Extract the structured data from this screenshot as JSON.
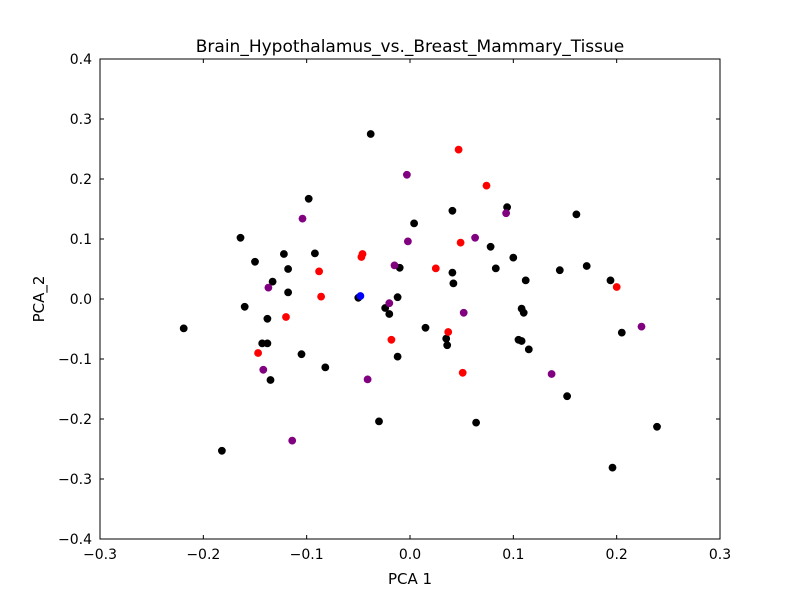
{
  "chart_data": {
    "type": "scatter",
    "title": "Brain_Hypothalamus_vs._Breast_Mammary_Tissue",
    "xlabel": "PCA 1",
    "ylabel": "PCA_2",
    "xlim": [
      -0.3,
      0.3
    ],
    "ylim": [
      -0.4,
      0.4
    ],
    "xticks": [
      -0.3,
      -0.2,
      -0.1,
      0.0,
      0.1,
      0.2,
      0.3
    ],
    "yticks": [
      -0.4,
      -0.3,
      -0.2,
      -0.1,
      0.0,
      0.1,
      0.2,
      0.3,
      0.4
    ],
    "xtick_labels": [
      "−0.3",
      "−0.2",
      "−0.1",
      "0.0",
      "0.1",
      "0.2",
      "0.3"
    ],
    "ytick_labels": [
      "−0.4",
      "−0.3",
      "−0.2",
      "−0.1",
      "0.0",
      "0.1",
      "0.2",
      "0.3",
      "0.4"
    ],
    "grid": false,
    "legend": "none",
    "series": [
      {
        "color": "#000000",
        "points": [
          [
            -0.038,
            0.275
          ],
          [
            -0.098,
            0.167
          ],
          [
            -0.164,
            0.102
          ],
          [
            -0.15,
            0.062
          ],
          [
            -0.122,
            0.075
          ],
          [
            -0.092,
            0.076
          ],
          [
            -0.118,
            0.05
          ],
          [
            -0.133,
            0.029
          ],
          [
            -0.118,
            0.011
          ],
          [
            -0.16,
            -0.013
          ],
          [
            -0.138,
            -0.033
          ],
          [
            -0.143,
            -0.074
          ],
          [
            -0.138,
            -0.074
          ],
          [
            -0.135,
            -0.135
          ],
          [
            -0.105,
            -0.092
          ],
          [
            -0.082,
            -0.114
          ],
          [
            -0.219,
            -0.049
          ],
          [
            -0.182,
            -0.253
          ],
          [
            -0.05,
            0.002
          ],
          [
            -0.024,
            -0.015
          ],
          [
            -0.02,
            -0.025
          ],
          [
            -0.012,
            0.003
          ],
          [
            -0.01,
            0.052
          ],
          [
            -0.012,
            -0.096
          ],
          [
            -0.03,
            -0.204
          ],
          [
            0.004,
            0.126
          ],
          [
            0.041,
            0.147
          ],
          [
            0.041,
            0.044
          ],
          [
            0.042,
            0.026
          ],
          [
            0.015,
            -0.048
          ],
          [
            0.035,
            -0.066
          ],
          [
            0.036,
            -0.077
          ],
          [
            0.064,
            -0.206
          ],
          [
            0.094,
            0.153
          ],
          [
            0.078,
            0.087
          ],
          [
            0.083,
            0.051
          ],
          [
            0.1,
            0.069
          ],
          [
            0.112,
            0.031
          ],
          [
            0.108,
            -0.016
          ],
          [
            0.11,
            -0.023
          ],
          [
            0.105,
            -0.068
          ],
          [
            0.108,
            -0.07
          ],
          [
            0.115,
            -0.084
          ],
          [
            0.145,
            0.048
          ],
          [
            0.161,
            0.141
          ],
          [
            0.171,
            0.055
          ],
          [
            0.194,
            0.031
          ],
          [
            0.205,
            -0.056
          ],
          [
            0.152,
            -0.162
          ],
          [
            0.196,
            -0.281
          ],
          [
            0.239,
            -0.213
          ]
        ]
      },
      {
        "color": "#ff0000",
        "points": [
          [
            0.047,
            0.249
          ],
          [
            0.074,
            0.189
          ],
          [
            0.049,
            0.094
          ],
          [
            -0.046,
            0.075
          ],
          [
            -0.047,
            0.07
          ],
          [
            -0.088,
            0.046
          ],
          [
            -0.086,
            0.004
          ],
          [
            -0.12,
            -0.03
          ],
          [
            -0.147,
            -0.09
          ],
          [
            0.025,
            0.051
          ],
          [
            0.037,
            -0.055
          ],
          [
            0.051,
            -0.123
          ],
          [
            -0.018,
            -0.068
          ],
          [
            0.2,
            0.02
          ]
        ]
      },
      {
        "color": "#800080",
        "points": [
          [
            -0.003,
            0.207
          ],
          [
            -0.104,
            0.134
          ],
          [
            -0.002,
            0.096
          ],
          [
            0.063,
            0.102
          ],
          [
            0.093,
            0.143
          ],
          [
            -0.015,
            0.056
          ],
          [
            -0.137,
            0.019
          ],
          [
            -0.02,
            -0.007
          ],
          [
            0.052,
            -0.023
          ],
          [
            -0.142,
            -0.118
          ],
          [
            -0.041,
            -0.134
          ],
          [
            -0.114,
            -0.236
          ],
          [
            0.137,
            -0.125
          ],
          [
            0.224,
            -0.046
          ]
        ]
      },
      {
        "color": "#0000ff",
        "points": [
          [
            -0.048,
            0.005
          ]
        ]
      }
    ]
  }
}
